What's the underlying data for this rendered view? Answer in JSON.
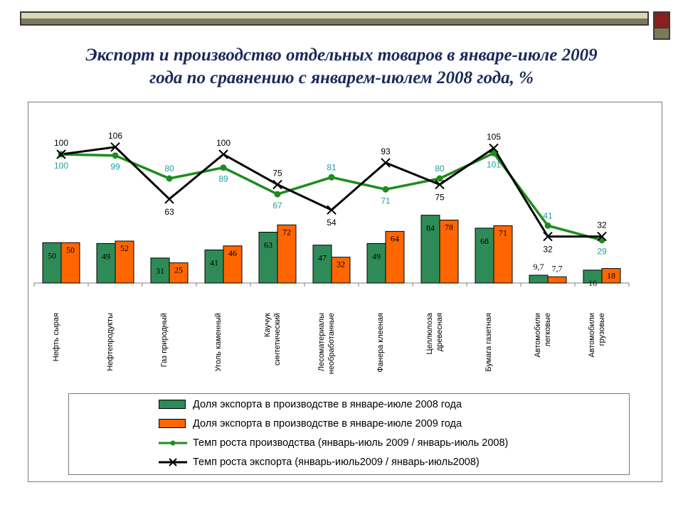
{
  "title_line1": "Экспорт и производство отдельных товаров в январе-июле 2009",
  "title_line2": "года по сравнению с январем-июлем 2008 года, %",
  "chart_data": {
    "type": "bar",
    "categories": [
      "Нефть сырая",
      "Нефтепродукты",
      "Газ природный",
      "Уголь каменный",
      "Каучук синтетический",
      "Лесоматериалы необработанные",
      "Фанера клееная",
      "Целлюлоза древесная",
      "Бумага газетная",
      "Автомобили легковые",
      "Автомобили грузовые"
    ],
    "category_lines": [
      [
        "Нефть сырая"
      ],
      [
        "Нефтепродукты"
      ],
      [
        "Газ природный"
      ],
      [
        "Уголь каменный"
      ],
      [
        "Каучук",
        "синтетический"
      ],
      [
        "Лесоматериалы",
        "необработанные"
      ],
      [
        "Фанера клееная"
      ],
      [
        "Целлюлоза",
        "древесная"
      ],
      [
        "Бумага газетная"
      ],
      [
        "Автомобили",
        "легковые"
      ],
      [
        "Автомобили",
        "грузовые"
      ]
    ],
    "series": [
      {
        "name": "Доля экспорта в производстве в январе-июле 2008 года",
        "kind": "bar",
        "color": "#2e8b57",
        "values": [
          50,
          49,
          31,
          41,
          63,
          47,
          49,
          84,
          68,
          9.7,
          16
        ],
        "labels": [
          "50",
          "49",
          "31",
          "41",
          "63",
          "47",
          "49",
          "84",
          "68",
          "9,7",
          "16"
        ]
      },
      {
        "name": "Доля экспорта в производстве в январе-июле 2009 года",
        "kind": "bar",
        "color": "#ff6600",
        "values": [
          50,
          52,
          25,
          46,
          72,
          32,
          64,
          78,
          71,
          7.7,
          18
        ],
        "labels": [
          "50",
          "52",
          "25",
          "46",
          "72",
          "32",
          "64",
          "78",
          "71",
          "7,7",
          "18"
        ]
      },
      {
        "name": "Темп роста производства (январь-июль 2009 / январь-июль 2008)",
        "kind": "line",
        "color": "#1e8c1e",
        "values": [
          100,
          99,
          80,
          89,
          67,
          81,
          71,
          80,
          101,
          41,
          29
        ],
        "labels": [
          "100",
          "99",
          "80",
          "89",
          "67",
          "81",
          "71",
          "80",
          "101",
          "41",
          "29"
        ]
      },
      {
        "name": "Темп роста экспорта (январь-июль2009 / январь-июль2008)",
        "kind": "line",
        "color": "#000000",
        "values": [
          100,
          106,
          63,
          100,
          75,
          54,
          93,
          75,
          105,
          32,
          32
        ],
        "labels": [
          "100",
          "106",
          "63",
          "100",
          "75",
          "54",
          "93",
          "75",
          "105",
          "32",
          "32"
        ]
      }
    ],
    "legend_position": "bottom",
    "grid": false
  },
  "colors": {
    "bar2008": "#2e8b57",
    "bar2009": "#ff6600",
    "production_line": "#1e8c1e",
    "export_line": "#000000",
    "title": "#1a2a5a"
  }
}
